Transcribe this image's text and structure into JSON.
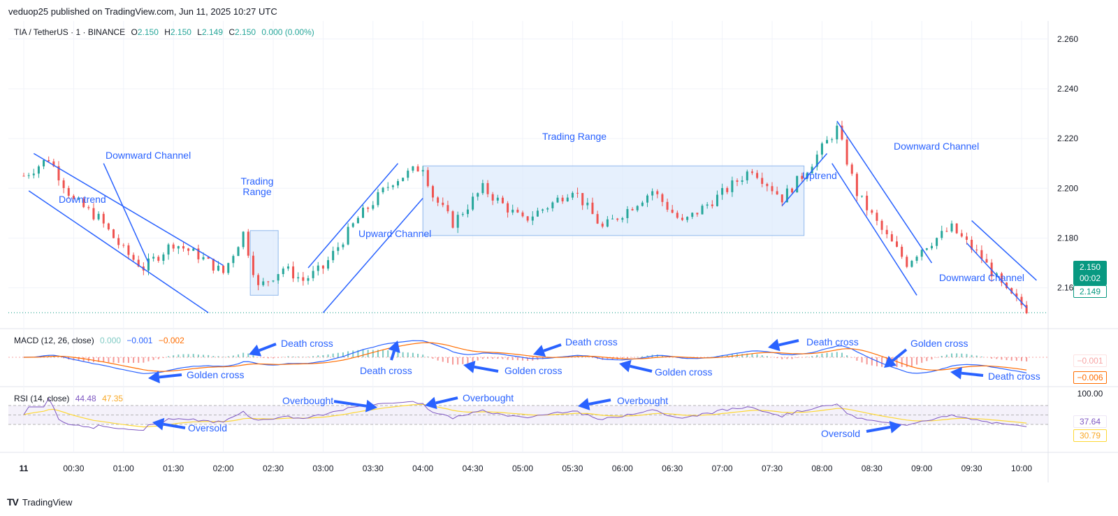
{
  "header": {
    "published": "veduop25 published on TradingView.com, Jun 11, 2025 10:27 UTC"
  },
  "legend": {
    "symbol": "TIA / TetherUS · 1 · BINANCE",
    "o_label": "O",
    "o_value": "2.150",
    "h_label": "H",
    "h_value": "2.150",
    "l_label": "L",
    "l_value": "2.149",
    "c_label": "C",
    "c_value": "2.150",
    "change": "0.000 (0.00%)"
  },
  "macd_legend": {
    "title": "MACD (12, 26, close)",
    "v1": "0.000",
    "v2": "−0.001",
    "v3": "−0.002"
  },
  "rsi_legend": {
    "title": "RSI (14, close)",
    "v1": "44.48",
    "v2": "47.35"
  },
  "price_badges": {
    "last": "2.150",
    "countdown": "00:02",
    "low": "2.149",
    "macd_a": "−0.001",
    "macd_b": "−0.006",
    "rsi_a": "37.64",
    "rsi_b": "30.79",
    "rsi_top": "100.00"
  },
  "footer": {
    "brand": "TradingView",
    "logo": "TV"
  },
  "colors": {
    "up": "#26a69a",
    "down": "#ef5350",
    "annotation": "#2962ff",
    "macd": "#2962ff",
    "signal": "#ff6d00",
    "rsi": "#7e57c2",
    "rsi_ma": "#fdd835",
    "box_fill": "#dceafc",
    "box_stroke": "#90b8ec",
    "grid": "#f0f3fa"
  },
  "chart_data": {
    "type": "candlestick",
    "title": "TIA / TetherUS · 1 · BINANCE",
    "xlabel": "",
    "ylabel": "",
    "y_ticks": [
      "2.260",
      "2.240",
      "2.220",
      "2.200",
      "2.180",
      "2.160"
    ],
    "x_ticks": [
      "11",
      "00:30",
      "01:00",
      "01:30",
      "02:00",
      "02:30",
      "03:00",
      "03:30",
      "04:00",
      "04:30",
      "05:00",
      "05:30",
      "06:00",
      "06:30",
      "07:00",
      "07:30",
      "08:00",
      "08:30",
      "09:00",
      "09:30",
      "10:00"
    ],
    "ylim": [
      2.145,
      2.265
    ],
    "price_path_hours": [
      [
        0.0,
        2.205
      ],
      [
        0.25,
        2.212
      ],
      [
        0.5,
        2.195
      ],
      [
        0.75,
        2.188
      ],
      [
        1.0,
        2.175
      ],
      [
        1.2,
        2.168
      ],
      [
        1.5,
        2.178
      ],
      [
        1.75,
        2.173
      ],
      [
        2.0,
        2.166
      ],
      [
        2.2,
        2.182
      ],
      [
        2.35,
        2.16
      ],
      [
        2.6,
        2.168
      ],
      [
        2.8,
        2.163
      ],
      [
        3.0,
        2.168
      ],
      [
        3.35,
        2.188
      ],
      [
        3.7,
        2.203
      ],
      [
        4.0,
        2.209
      ],
      [
        4.1,
        2.197
      ],
      [
        4.3,
        2.186
      ],
      [
        4.6,
        2.2
      ],
      [
        5.0,
        2.187
      ],
      [
        5.3,
        2.194
      ],
      [
        5.5,
        2.2
      ],
      [
        5.8,
        2.184
      ],
      [
        6.0,
        2.19
      ],
      [
        6.3,
        2.199
      ],
      [
        6.6,
        2.186
      ],
      [
        7.0,
        2.198
      ],
      [
        7.3,
        2.208
      ],
      [
        7.6,
        2.196
      ],
      [
        7.8,
        2.205
      ],
      [
        8.0,
        2.216
      ],
      [
        8.15,
        2.224
      ],
      [
        8.35,
        2.198
      ],
      [
        8.6,
        2.183
      ],
      [
        8.85,
        2.17
      ],
      [
        9.0,
        2.176
      ],
      [
        9.3,
        2.184
      ],
      [
        9.6,
        2.172
      ],
      [
        9.85,
        2.158
      ],
      [
        10.1,
        2.15
      ]
    ],
    "ohlc_last": {
      "open": 2.15,
      "high": 2.15,
      "low": 2.149,
      "close": 2.15
    },
    "last_price": 2.15,
    "panels": [
      "price",
      "MACD (12, 26, close)",
      "RSI (14, close)"
    ]
  },
  "annotations": {
    "price": {
      "downward_channel_1": "Downward Channel",
      "downtrend": "Downtrend",
      "trading_range_1": "Trading\nRange",
      "upward_channel": "Upward Channel",
      "trading_range_2": "Trading Range",
      "uptrend": "Uptrend",
      "downward_channel_2": "Downward Channel",
      "downward_channel_3": "Downward Channel"
    },
    "macd": [
      "Golden cross",
      "Death cross",
      "Death cross",
      "Golden cross",
      "Death cross",
      "Golden cross",
      "Death cross",
      "Golden cross",
      "Death cross"
    ],
    "rsi": [
      "Oversold",
      "Overbought",
      "Overbought",
      "Overbought",
      "Oversold"
    ]
  }
}
